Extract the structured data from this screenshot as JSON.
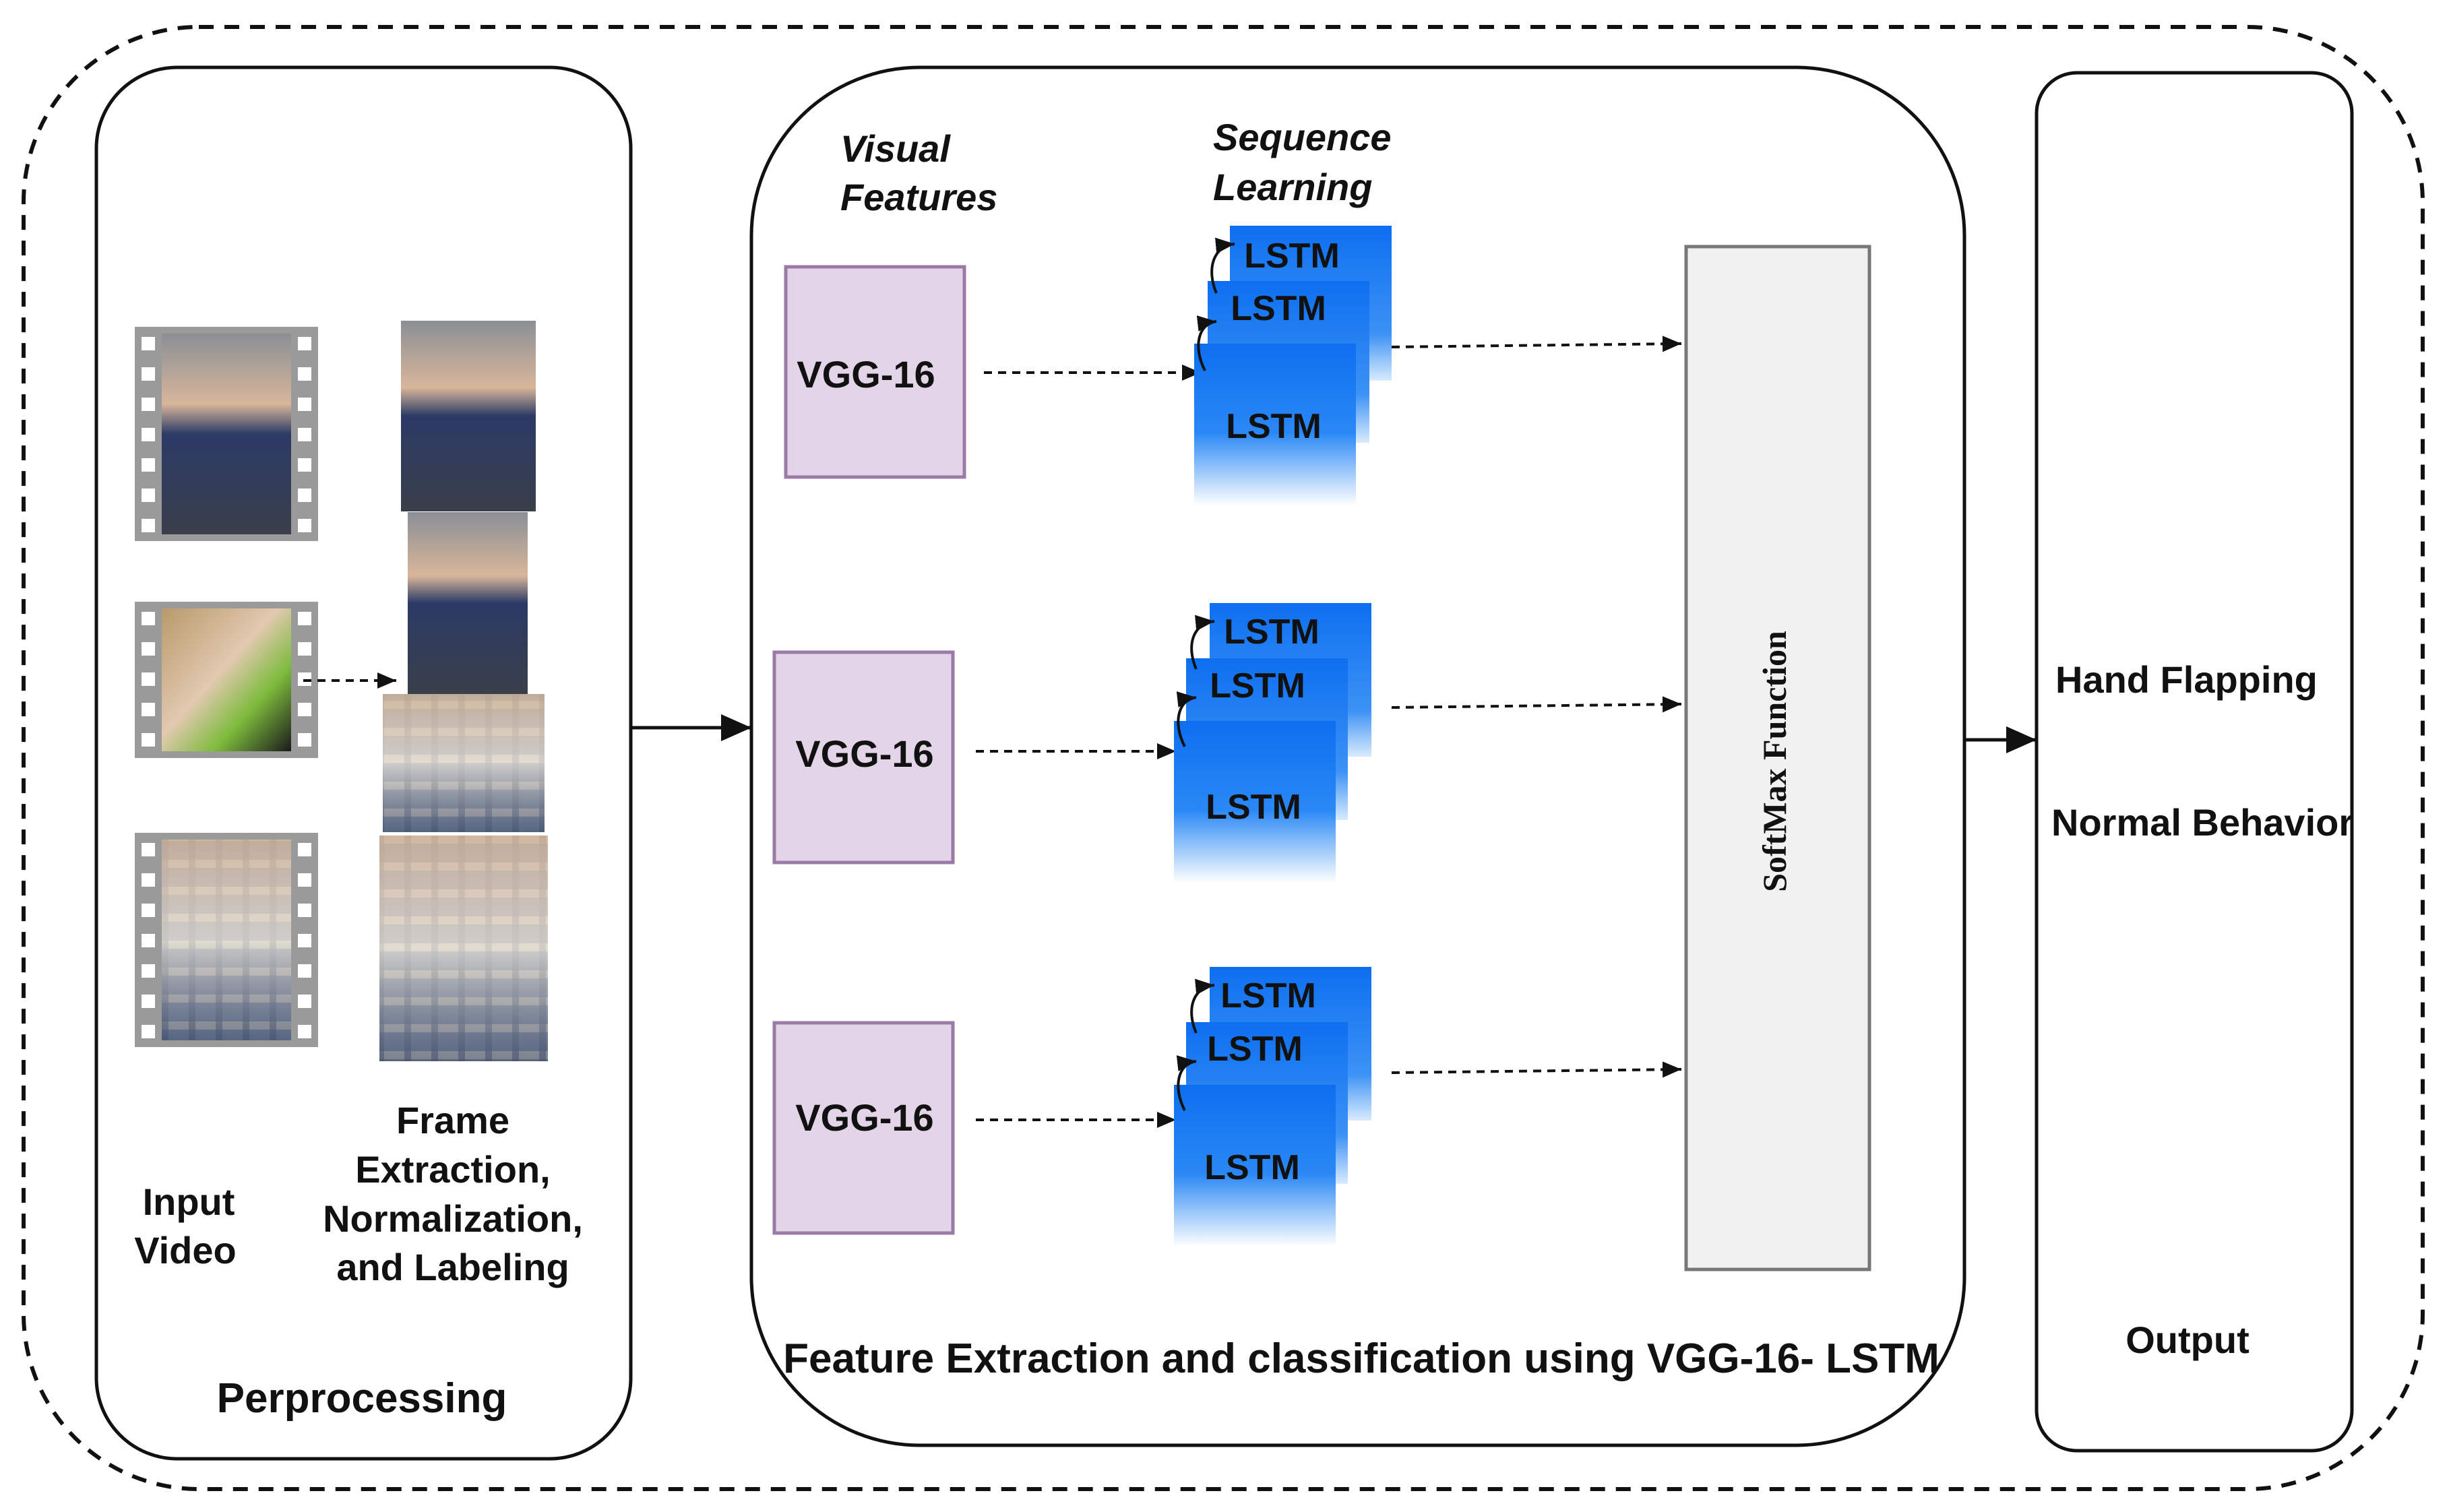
{
  "colors": {
    "vgg_fill": "#e3d5e7",
    "vgg_border": "#9a7aa6",
    "lstm_blue": "#1a7df0",
    "softmax_fill": "#f1f1f1",
    "line": "#111111"
  },
  "preprocessing": {
    "input_video_label": [
      "Input",
      "Video"
    ],
    "frame_label": [
      "Frame",
      "Extraction,",
      "Normalization,",
      "and Labeling"
    ],
    "title": "Perprocessing"
  },
  "feature_extraction": {
    "visual_features_label": [
      "Visual",
      "Features"
    ],
    "sequence_learning_label": [
      "Sequence",
      "Learning"
    ],
    "vgg_label": "VGG-16",
    "lstm_label": "LSTM",
    "softmax_label": "SoftMax Function",
    "title": "Feature Extraction and classification using VGG-16- LSTM"
  },
  "output": {
    "classes": [
      "Hand Flapping",
      "Normal Behavior"
    ],
    "title": "Output"
  },
  "icons": {
    "film_strip": "film-strip-icon",
    "frame_photo": "video-frame-icon"
  }
}
